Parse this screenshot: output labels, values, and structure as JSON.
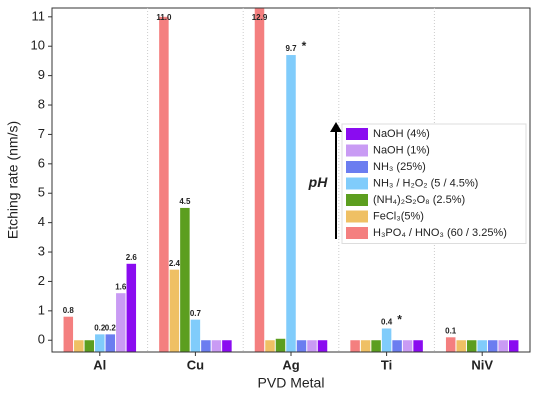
{
  "chart_data": {
    "type": "bar",
    "x_label": "PVD Metal",
    "y_label": "Etching rate (nm/s)",
    "categories": [
      "Al",
      "Cu",
      "Ag",
      "Ti",
      "NiV"
    ],
    "ylim": [
      -0.4,
      11.3
    ],
    "yticks": [
      0,
      1,
      2,
      3,
      4,
      5,
      6,
      7,
      8,
      9,
      10,
      11
    ],
    "series": [
      {
        "name": "H₃PO₄ / HNO₃ (60 / 3.25%)",
        "color": "#f47f7f",
        "values": [
          0.8,
          11.0,
          12.9,
          0,
          0.1
        ],
        "value_labels": [
          "0.8",
          "11.0",
          "12.9",
          null,
          "0.1"
        ]
      },
      {
        "name": "FeCl₃(5%)",
        "color": "#efc064",
        "values": [
          0,
          2.4,
          0,
          0,
          0
        ],
        "value_labels": [
          null,
          "2.4",
          null,
          null,
          null
        ]
      },
      {
        "name": "(NH₄)₂S₂O₈ (2.5%)",
        "color": "#5c9e1f",
        "values": [
          0,
          4.5,
          0.05,
          0,
          0
        ],
        "value_labels": [
          null,
          "4.5",
          null,
          null,
          null
        ]
      },
      {
        "name": "NH₃ / H₂O₂ (5 / 4.5%)",
        "color": "#80ccfb",
        "values": [
          0.2,
          0.7,
          9.7,
          0.4,
          0
        ],
        "value_labels": [
          "0.2",
          "0.7",
          "9.7",
          "0.4",
          null
        ]
      },
      {
        "name": "NH₃ (25%)",
        "color": "#6b7df0",
        "values": [
          0.2,
          0,
          0,
          0,
          0
        ],
        "value_labels": [
          "0.2",
          null,
          null,
          null,
          null
        ]
      },
      {
        "name": "NaOH (1%)",
        "color": "#c99bf4",
        "values": [
          1.6,
          0,
          0,
          0,
          0
        ],
        "value_labels": [
          "1.6",
          null,
          null,
          null,
          null
        ]
      },
      {
        "name": "NaOH (4%)",
        "color": "#8a0cf0",
        "values": [
          2.6,
          0,
          0,
          0,
          0
        ],
        "value_labels": [
          "2.6",
          null,
          null,
          null,
          null
        ]
      }
    ],
    "annotations": [
      {
        "text": "*",
        "series": 3,
        "category": 2
      },
      {
        "text": "*",
        "series": 3,
        "category": 3
      }
    ],
    "legend_arrow_label": "pH"
  }
}
